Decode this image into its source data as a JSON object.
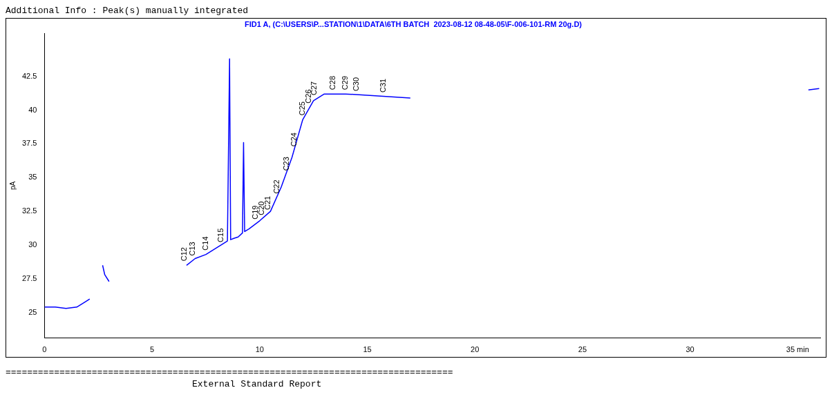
{
  "chart_data": {
    "type": "line",
    "title": "FID1 A, (C:\\USERS\\P...STATION\\1\\DATA\\6TH BATCH  2023-08-12 08-48-05\\F-006-101-RM 20g.D)",
    "ylabel": "pA",
    "x": [
      0,
      0.5,
      1.0,
      1.5,
      1.9,
      2.1,
      2.12,
      2.65,
      2.7,
      2.8,
      3.0,
      4.8,
      6.6,
      7.0,
      7.5,
      8.0,
      8.5,
      8.6,
      8.65,
      8.8,
      9.0,
      9.2,
      9.25,
      9.3,
      9.5,
      10,
      10.5,
      11,
      11.5,
      12,
      12.5,
      13,
      14,
      15,
      16,
      17,
      26,
      35.5,
      36
    ],
    "series": [
      {
        "color": "#0000ff",
        "values": [
          25.4,
          25.4,
          25.3,
          25.4,
          25.8,
          26.0,
          null,
          null,
          28.5,
          27.8,
          27.3,
          null,
          28.5,
          29.0,
          29.3,
          29.8,
          30.3,
          43.8,
          30.4,
          30.5,
          30.6,
          30.9,
          37.6,
          31.0,
          31.2,
          31.8,
          32.5,
          34.3,
          36.5,
          39.3,
          40.7,
          41.2,
          41.2,
          41.1,
          41.0,
          40.9,
          null,
          41.5,
          41.6
        ]
      }
    ],
    "xlim": [
      0,
      36.05
    ],
    "xticks": [
      0,
      5,
      10,
      15,
      20,
      25,
      30,
      {
        "value": 35,
        "label": "35 min"
      }
    ],
    "ylim": [
      23.1,
      45.7
    ],
    "yticks": [
      25,
      27.5,
      30,
      32.5,
      35,
      37.5,
      40,
      42.5
    ],
    "grid": false,
    "legend": false,
    "marker": "none",
    "line_style": "solid",
    "annotations": [
      "Additional Info : Peak(s) manually integrated",
      {
        "text": "C12",
        "x": 6.5,
        "y": 28.5
      },
      {
        "text": "C13",
        "x": 6.9,
        "y": 28.9
      },
      {
        "text": "C14",
        "x": 7.5,
        "y": 29.3
      },
      {
        "text": "C15",
        "x": 8.2,
        "y": 29.9
      },
      {
        "text": "C19",
        "x": 9.8,
        "y": 31.6
      },
      {
        "text": "C20",
        "x": 10.1,
        "y": 31.9
      },
      {
        "text": "C21",
        "x": 10.4,
        "y": 32.3
      },
      {
        "text": "C22",
        "x": 10.8,
        "y": 33.5
      },
      {
        "text": "C23",
        "x": 11.25,
        "y": 35.2
      },
      {
        "text": "C24",
        "x": 11.6,
        "y": 37.0
      },
      {
        "text": "C25",
        "x": 12.0,
        "y": 39.3
      },
      {
        "text": "C26",
        "x": 12.3,
        "y": 40.2
      },
      {
        "text": "C27",
        "x": 12.55,
        "y": 40.8
      },
      {
        "text": "C28",
        "x": 13.4,
        "y": 41.2
      },
      {
        "text": "C29",
        "x": 14.0,
        "y": 41.2
      },
      {
        "text": "C30",
        "x": 14.5,
        "y": 41.1
      },
      {
        "text": "C31",
        "x": 15.75,
        "y": 41.0
      },
      "===================================================================================",
      "External Standard Report"
    ]
  }
}
